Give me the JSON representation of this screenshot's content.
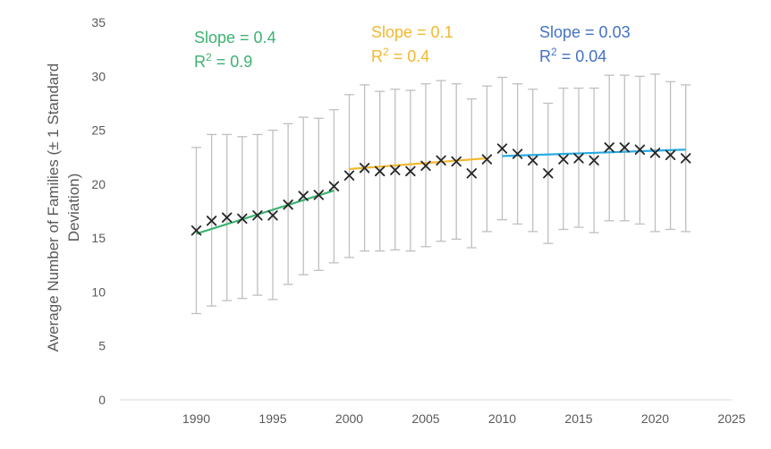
{
  "chart_data": {
    "type": "scatter",
    "title": "",
    "xlabel": "",
    "ylabel": [
      "Average Number of Families (± 1 Standard",
      "Deviation)"
    ],
    "xlim": [
      1985,
      2025
    ],
    "ylim": [
      0,
      35
    ],
    "x_ticks": [
      1990,
      1995,
      2000,
      2005,
      2010,
      2015,
      2020,
      2025
    ],
    "y_ticks": [
      0,
      5,
      10,
      15,
      20,
      25,
      30,
      35
    ],
    "grid": false,
    "legend": "none",
    "marker": "x",
    "marker_color": "#262626",
    "errorbar_color": "#bfbfbf",
    "axis_color": "#d9d9d9",
    "points": [
      {
        "x": 1990,
        "y": 15.7,
        "lo": 8.0,
        "hi": 23.4
      },
      {
        "x": 1991,
        "y": 16.6,
        "lo": 8.7,
        "hi": 24.6
      },
      {
        "x": 1992,
        "y": 16.9,
        "lo": 9.2,
        "hi": 24.6
      },
      {
        "x": 1993,
        "y": 16.8,
        "lo": 9.4,
        "hi": 24.4
      },
      {
        "x": 1994,
        "y": 17.1,
        "lo": 9.7,
        "hi": 24.6
      },
      {
        "x": 1995,
        "y": 17.1,
        "lo": 9.3,
        "hi": 25.0
      },
      {
        "x": 1996,
        "y": 18.1,
        "lo": 10.7,
        "hi": 25.6
      },
      {
        "x": 1997,
        "y": 18.9,
        "lo": 11.6,
        "hi": 26.2
      },
      {
        "x": 1998,
        "y": 19.0,
        "lo": 12.0,
        "hi": 26.1
      },
      {
        "x": 1999,
        "y": 19.8,
        "lo": 12.7,
        "hi": 26.9
      },
      {
        "x": 2000,
        "y": 20.8,
        "lo": 13.2,
        "hi": 28.3
      },
      {
        "x": 2001,
        "y": 21.5,
        "lo": 13.8,
        "hi": 29.2
      },
      {
        "x": 2002,
        "y": 21.2,
        "lo": 13.8,
        "hi": 28.6
      },
      {
        "x": 2003,
        "y": 21.3,
        "lo": 13.9,
        "hi": 28.8
      },
      {
        "x": 2004,
        "y": 21.2,
        "lo": 13.8,
        "hi": 28.7
      },
      {
        "x": 2005,
        "y": 21.7,
        "lo": 14.2,
        "hi": 29.3
      },
      {
        "x": 2006,
        "y": 22.2,
        "lo": 14.7,
        "hi": 29.6
      },
      {
        "x": 2007,
        "y": 22.1,
        "lo": 14.9,
        "hi": 29.3
      },
      {
        "x": 2008,
        "y": 21.0,
        "lo": 14.1,
        "hi": 27.9
      },
      {
        "x": 2009,
        "y": 22.3,
        "lo": 15.6,
        "hi": 29.1
      },
      {
        "x": 2010,
        "y": 23.3,
        "lo": 16.7,
        "hi": 29.9
      },
      {
        "x": 2011,
        "y": 22.8,
        "lo": 16.3,
        "hi": 29.3
      },
      {
        "x": 2012,
        "y": 22.2,
        "lo": 15.6,
        "hi": 28.8
      },
      {
        "x": 2013,
        "y": 21.0,
        "lo": 14.5,
        "hi": 27.5
      },
      {
        "x": 2014,
        "y": 22.3,
        "lo": 15.8,
        "hi": 28.9
      },
      {
        "x": 2015,
        "y": 22.4,
        "lo": 16.0,
        "hi": 28.9
      },
      {
        "x": 2016,
        "y": 22.2,
        "lo": 15.5,
        "hi": 28.9
      },
      {
        "x": 2017,
        "y": 23.4,
        "lo": 16.6,
        "hi": 30.1
      },
      {
        "x": 2018,
        "y": 23.4,
        "lo": 16.6,
        "hi": 30.1
      },
      {
        "x": 2019,
        "y": 23.2,
        "lo": 16.3,
        "hi": 30.0
      },
      {
        "x": 2020,
        "y": 22.9,
        "lo": 15.6,
        "hi": 30.2
      },
      {
        "x": 2021,
        "y": 22.7,
        "lo": 15.8,
        "hi": 29.5
      },
      {
        "x": 2022,
        "y": 22.4,
        "lo": 15.6,
        "hi": 29.2
      }
    ],
    "trendlines": [
      {
        "x": [
          1990,
          1999
        ],
        "y": [
          15.4,
          19.4
        ],
        "color": "#3cb371"
      },
      {
        "x": [
          2000,
          2009
        ],
        "y": [
          21.4,
          22.4
        ],
        "color": "#f2b82e"
      },
      {
        "x": [
          2010,
          2022
        ],
        "y": [
          22.6,
          23.2
        ],
        "color": "#29abe2"
      }
    ],
    "annotations": [
      {
        "slope": "Slope = 0.4",
        "r2_base": "R",
        "r2_exp": "2",
        "r2_rest": " = 0.9",
        "color": "#3cb371"
      },
      {
        "slope": "Slope = 0.1",
        "r2_base": "R",
        "r2_exp": "2",
        "r2_rest": " = 0.4",
        "color": "#f2b82e"
      },
      {
        "slope": "Slope = 0.03",
        "r2_base": "R",
        "r2_exp": "2",
        "r2_rest": " = 0.04",
        "color": "#4472c4"
      }
    ]
  }
}
